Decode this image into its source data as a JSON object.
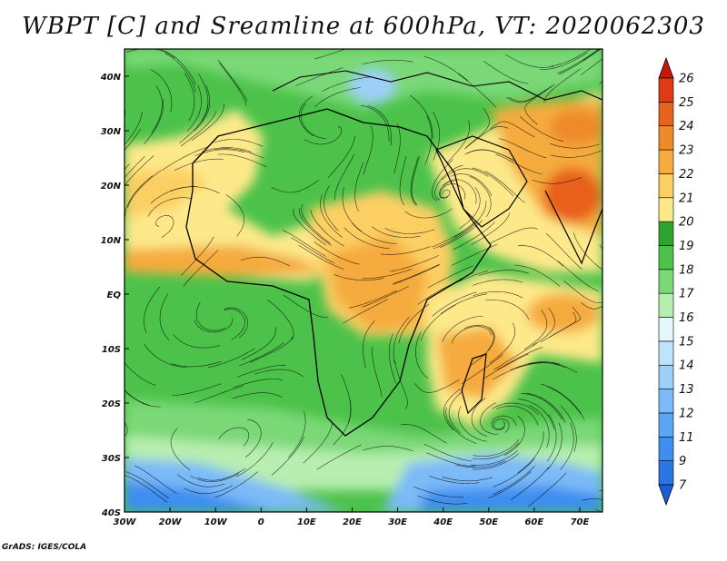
{
  "title": "WBPT [C] and Sreamline at 600hPa, VT: 2020062303",
  "credit": "GrADS: IGES/COLA",
  "map": {
    "lon_range": [
      -30,
      75
    ],
    "lat_range": [
      -40,
      45
    ],
    "x_ticks": [
      "30W",
      "20W",
      "10W",
      "0",
      "10E",
      "20E",
      "30E",
      "40E",
      "50E",
      "60E",
      "70E"
    ],
    "x_tick_values": [
      -30,
      -20,
      -10,
      0,
      10,
      20,
      30,
      40,
      50,
      60,
      70
    ],
    "y_ticks": [
      "40S",
      "30S",
      "20S",
      "10S",
      "EQ",
      "10N",
      "20N",
      "30N",
      "40N"
    ],
    "y_tick_values": [
      -40,
      -30,
      -20,
      -10,
      0,
      10,
      20,
      30,
      40
    ]
  },
  "colorbar": {
    "levels": [
      "7",
      "9",
      "11",
      "12",
      "13",
      "14",
      "15",
      "16",
      "17",
      "18",
      "19",
      "20",
      "21",
      "22",
      "23",
      "24",
      "25",
      "26"
    ],
    "colors": [
      "#1a5fd9",
      "#2a77e4",
      "#3e8ef0",
      "#5ca5f5",
      "#7cbaf8",
      "#9dcff9",
      "#c0e3fb",
      "#e6f7fb",
      "#b8eeb0",
      "#7ad877",
      "#4cc24a",
      "#2fa32f",
      "#fde98a",
      "#fccf63",
      "#f5ab3e",
      "#ee8a2a",
      "#e8611e",
      "#df3a14",
      "#c91609"
    ]
  },
  "chart_data": {
    "type": "heatmap",
    "variable": "WBPT [C]",
    "level": "600hPa",
    "valid_time": "2020062303",
    "x_axis": "longitude",
    "y_axis": "latitude",
    "xlim": [
      -30,
      75
    ],
    "ylim": [
      -40,
      45
    ],
    "color_levels": [
      7,
      9,
      11,
      12,
      13,
      14,
      15,
      16,
      17,
      18,
      19,
      20,
      21,
      22,
      23,
      24,
      25,
      26
    ]
  }
}
